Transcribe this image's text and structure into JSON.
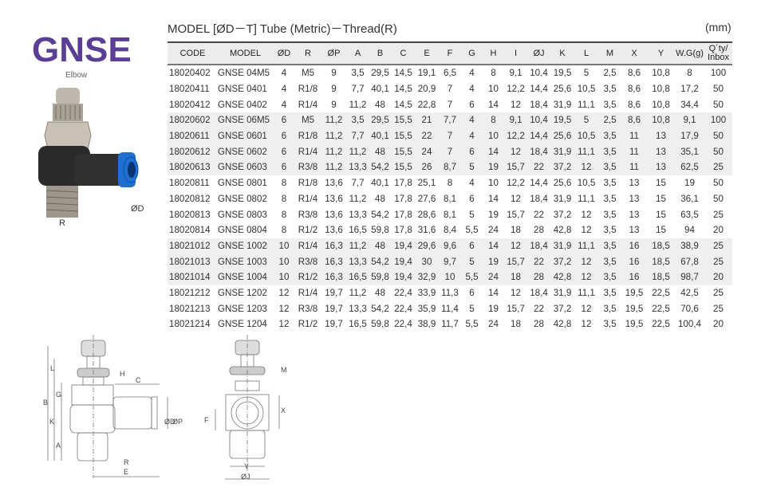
{
  "product": {
    "name": "GNSE",
    "subtitle": "Elbow",
    "photo_labels": {
      "thread": "R",
      "tube": "ØD"
    }
  },
  "table": {
    "title": "MODEL [ØD－T]  Tube (Metric)－Thread(R)",
    "unit": "(mm)",
    "headers": [
      "CODE",
      "MODEL",
      "ØD",
      "R",
      "ØP",
      "A",
      "B",
      "C",
      "E",
      "F",
      "G",
      "H",
      "I",
      "ØJ",
      "K",
      "L",
      "M",
      "X",
      "Y",
      "W.G(g)",
      "Q´ty/ Inbox"
    ],
    "rows": [
      [
        "18020402",
        "GNSE 04M5",
        "4",
        "M5",
        "9",
        "3,5",
        "29,5",
        "14,5",
        "19,1",
        "6,5",
        "4",
        "8",
        "9,1",
        "10,4",
        "19,5",
        "5",
        "2,5",
        "8,6",
        "10,8",
        "8",
        "100"
      ],
      [
        "18020411",
        "GNSE 0401",
        "4",
        "R1/8",
        "9",
        "7,7",
        "40,1",
        "14,5",
        "20,9",
        "7",
        "4",
        "10",
        "12,2",
        "14,4",
        "25,6",
        "10,5",
        "3,5",
        "8,6",
        "10,8",
        "17,2",
        "50"
      ],
      [
        "18020412",
        "GNSE 0402",
        "4",
        "R1/4",
        "9",
        "11,2",
        "48",
        "14,5",
        "22,8",
        "7",
        "6",
        "14",
        "12",
        "18,4",
        "31,9",
        "11,1",
        "3,5",
        "8,6",
        "10,8",
        "34,4",
        "50"
      ],
      [
        "18020602",
        "GNSE 06M5",
        "6",
        "M5",
        "11,2",
        "3,5",
        "29,5",
        "15,5",
        "21",
        "7,7",
        "4",
        "8",
        "9,1",
        "10,4",
        "19,5",
        "5",
        "2,5",
        "8,6",
        "10,8",
        "9,1",
        "100"
      ],
      [
        "18020611",
        "GNSE 0601",
        "6",
        "R1/8",
        "11,2",
        "7,7",
        "40,1",
        "15,5",
        "22",
        "7",
        "4",
        "10",
        "12,2",
        "14,4",
        "25,6",
        "10,5",
        "3,5",
        "11",
        "13",
        "17,9",
        "50"
      ],
      [
        "18020612",
        "GNSE 0602",
        "6",
        "R1/4",
        "11,2",
        "11,2",
        "48",
        "15,5",
        "24",
        "7",
        "6",
        "14",
        "12",
        "18,4",
        "31,9",
        "11,1",
        "3,5",
        "11",
        "13",
        "35,1",
        "50"
      ],
      [
        "18020613",
        "GNSE 0603",
        "6",
        "R3/8",
        "11,2",
        "13,3",
        "54,2",
        "15,5",
        "26",
        "8,7",
        "5",
        "19",
        "15,7",
        "22",
        "37,2",
        "12",
        "3,5",
        "11",
        "13",
        "62,5",
        "25"
      ],
      [
        "18020811",
        "GNSE 0801",
        "8",
        "R1/8",
        "13,6",
        "7,7",
        "40,1",
        "17,8",
        "25,1",
        "8",
        "4",
        "10",
        "12,2",
        "14,4",
        "25,6",
        "10,5",
        "3,5",
        "13",
        "15",
        "19",
        "50"
      ],
      [
        "18020812",
        "GNSE 0802",
        "8",
        "R1/4",
        "13,6",
        "11,2",
        "48",
        "17,8",
        "27,6",
        "8,1",
        "6",
        "14",
        "12",
        "18,4",
        "31,9",
        "11,1",
        "3,5",
        "13",
        "15",
        "36,1",
        "50"
      ],
      [
        "18020813",
        "GNSE 0803",
        "8",
        "R3/8",
        "13,6",
        "13,3",
        "54,2",
        "17,8",
        "28,6",
        "8,1",
        "5",
        "19",
        "15,7",
        "22",
        "37,2",
        "12",
        "3,5",
        "13",
        "15",
        "63,5",
        "25"
      ],
      [
        "18020814",
        "GNSE 0804",
        "8",
        "R1/2",
        "13,6",
        "16,5",
        "59,8",
        "17,8",
        "31,6",
        "8,4",
        "5,5",
        "24",
        "18",
        "28",
        "42,8",
        "12",
        "3,5",
        "13",
        "15",
        "94",
        "20"
      ],
      [
        "18021012",
        "GNSE 1002",
        "10",
        "R1/4",
        "16,3",
        "11,2",
        "48",
        "19,4",
        "29,6",
        "9,6",
        "6",
        "14",
        "12",
        "18,4",
        "31,9",
        "11,1",
        "3,5",
        "16",
        "18,5",
        "38,9",
        "25"
      ],
      [
        "18021013",
        "GNSE 1003",
        "10",
        "R3/8",
        "16,3",
        "13,3",
        "54,2",
        "19,4",
        "30",
        "9,7",
        "5",
        "19",
        "15,7",
        "22",
        "37,2",
        "12",
        "3,5",
        "16",
        "18,5",
        "67,8",
        "25"
      ],
      [
        "18021014",
        "GNSE 1004",
        "10",
        "R1/2",
        "16,3",
        "16,5",
        "59,8",
        "19,4",
        "32,9",
        "10",
        "5,5",
        "24",
        "18",
        "28",
        "42,8",
        "12",
        "3,5",
        "16",
        "18,5",
        "98,7",
        "20"
      ],
      [
        "18021212",
        "GNSE 1202",
        "12",
        "R1/4",
        "19,7",
        "11,2",
        "48",
        "22,4",
        "33,9",
        "11,3",
        "6",
        "14",
        "12",
        "18,4",
        "31,9",
        "11,1",
        "3,5",
        "19,5",
        "22,5",
        "42,5",
        "25"
      ],
      [
        "18021213",
        "GNSE 1203",
        "12",
        "R3/8",
        "19,7",
        "13,3",
        "54,2",
        "22,4",
        "35,9",
        "11,4",
        "5",
        "19",
        "15,7",
        "22",
        "37,2",
        "12",
        "3,5",
        "19,5",
        "22,5",
        "70,6",
        "25"
      ],
      [
        "18021214",
        "GNSE 1204",
        "12",
        "R1/2",
        "19,7",
        "16,5",
        "59,8",
        "22,4",
        "38,9",
        "11,7",
        "5,5",
        "24",
        "18",
        "28",
        "42,8",
        "12",
        "3,5",
        "19,5",
        "22,5",
        "100,4",
        "20"
      ]
    ],
    "shaded_groups": [
      "6",
      "10"
    ]
  },
  "drawing": {
    "side_labels": {
      "B": "B",
      "L": "L",
      "G": "G",
      "K": "K",
      "A": "A",
      "H": "H",
      "C": "C",
      "R": "R",
      "E": "E",
      "D": "ØD",
      "P": "ØP"
    },
    "front_labels": {
      "M": "M",
      "X": "X",
      "F": "F",
      "Y": "Y",
      "J": "ØJ"
    }
  },
  "colors": {
    "brand": "#5b3f96",
    "shade": "#efefef",
    "blue_collet": "#1f6fd1"
  }
}
